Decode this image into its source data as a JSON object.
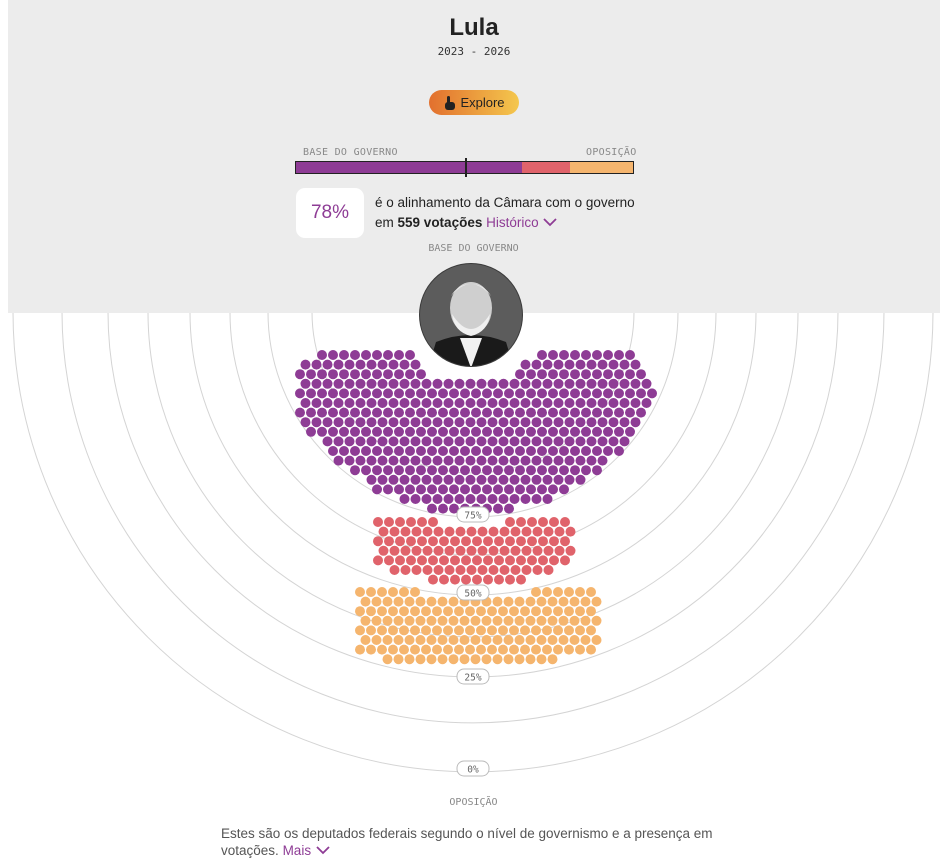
{
  "header": {
    "title": "Lula",
    "years": "2023 - 2026",
    "explore_label": "Explore"
  },
  "scale": {
    "left_label": "BASE DO GOVERNO",
    "right_label": "OPOSIÇÃO",
    "segments": [
      {
        "color": "#8e3c95",
        "share": 0.672
      },
      {
        "color": "#e0636b",
        "share": 0.14
      },
      {
        "color": "#f5b56e",
        "share": 0.188
      }
    ],
    "marker_fraction": 0.5
  },
  "summary": {
    "percent": "78%",
    "line1": "é o alinhamento da Câmara com o governo",
    "line2_prefix": "em",
    "votes": "559 votações",
    "history_link": "Histórico"
  },
  "chart_data": {
    "type": "scatter",
    "top_label": "BASE DO GOVERNO",
    "bottom_label": "OPOSIÇÃO",
    "rings": [
      "75%",
      "50%",
      "25%",
      "0%"
    ],
    "groups": [
      {
        "color": "#8e3c95",
        "range": [
          75,
          100
        ],
        "approx_count": 380
      },
      {
        "color": "#e0636b",
        "range": [
          50,
          75
        ],
        "approx_count": 100
      },
      {
        "color": "#f5b56e",
        "range": [
          25,
          50
        ],
        "approx_count": 125
      }
    ]
  },
  "footer": {
    "text": "Estes são os deputados federais segundo o nível de governismo e a presença em votações.",
    "more_link": "Mais"
  },
  "colors": {
    "base": "#8e3c95",
    "middle": "#e0636b",
    "opposition": "#f5b56e",
    "header_bg": "#ececec"
  }
}
